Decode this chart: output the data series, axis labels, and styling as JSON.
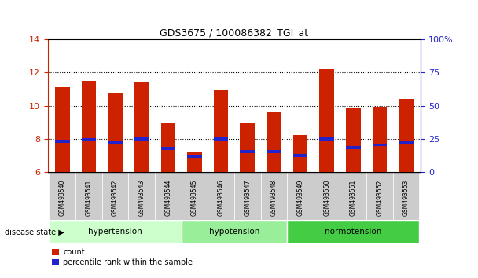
{
  "title": "GDS3675 / 100086382_TGI_at",
  "samples": [
    "GSM493540",
    "GSM493541",
    "GSM493542",
    "GSM493543",
    "GSM493544",
    "GSM493545",
    "GSM493546",
    "GSM493547",
    "GSM493548",
    "GSM493549",
    "GSM493550",
    "GSM493551",
    "GSM493552",
    "GSM493553"
  ],
  "count_values": [
    11.1,
    11.5,
    10.75,
    11.4,
    9.0,
    7.25,
    10.9,
    9.0,
    9.65,
    8.25,
    12.2,
    9.9,
    9.95,
    10.4
  ],
  "percentile_values": [
    7.85,
    7.95,
    7.75,
    8.0,
    7.45,
    6.95,
    8.0,
    7.25,
    7.25,
    7.0,
    8.0,
    7.5,
    7.65,
    7.75
  ],
  "ylim_left": [
    6,
    14
  ],
  "ylim_right": [
    0,
    100
  ],
  "yticks_left": [
    6,
    8,
    10,
    12,
    14
  ],
  "yticks_right": [
    0,
    25,
    50,
    75,
    100
  ],
  "ytick_labels_right": [
    "0",
    "25",
    "50",
    "75",
    "100%"
  ],
  "bar_color_red": "#cc2200",
  "bar_color_blue": "#2222cc",
  "bar_width": 0.55,
  "groups": [
    {
      "label": "hypertension",
      "start": 0,
      "end": 4,
      "color": "#ccffcc"
    },
    {
      "label": "hypotension",
      "start": 5,
      "end": 8,
      "color": "#99ee99"
    },
    {
      "label": "normotension",
      "start": 9,
      "end": 13,
      "color": "#44cc44"
    }
  ],
  "disease_state_label": "disease state",
  "legend_red_label": "count",
  "legend_blue_label": "percentile rank within the sample",
  "tick_color_left": "#cc2200",
  "tick_color_right": "#2222cc",
  "sample_label_bg": "#cccccc",
  "grid_line_color": "#000000",
  "grid_yticks": [
    8,
    10,
    12
  ]
}
